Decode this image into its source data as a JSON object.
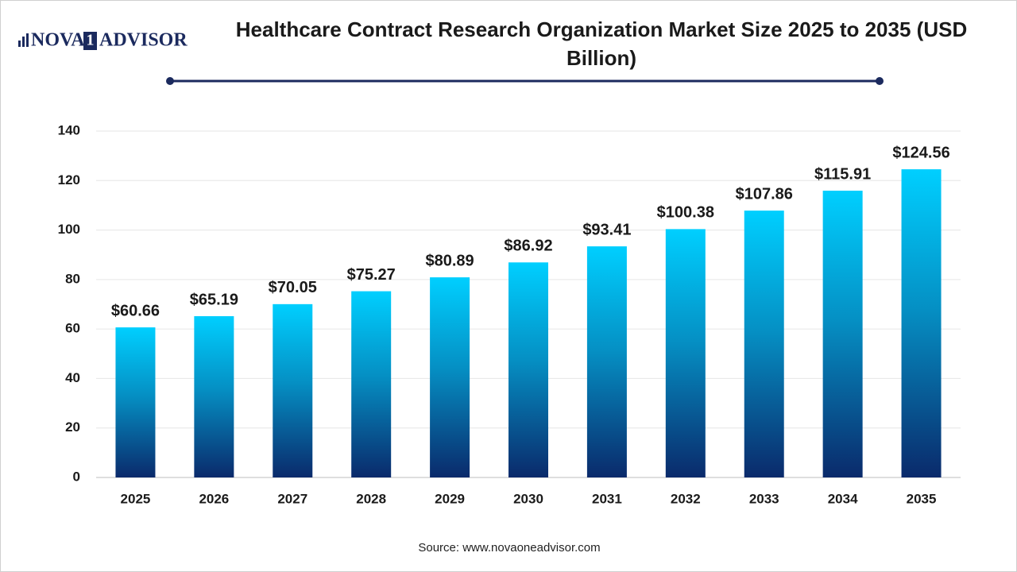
{
  "logo": {
    "left": "NOVA",
    "mark": "1",
    "right": "ADVISOR"
  },
  "chart_data": {
    "type": "bar",
    "title": "Healthcare Contract Research Organization Market Size 2025 to 2035 (USD Billion)",
    "source": "Source: www.novaoneadvisor.com",
    "categories": [
      "2025",
      "2026",
      "2027",
      "2028",
      "2029",
      "2030",
      "2031",
      "2032",
      "2033",
      "2034",
      "2035"
    ],
    "values": [
      60.66,
      65.19,
      70.05,
      75.27,
      80.89,
      86.92,
      93.41,
      100.38,
      107.86,
      115.91,
      124.56
    ],
    "value_labels": [
      "$60.66",
      "$65.19",
      "$70.05",
      "$75.27",
      "$80.89",
      "$86.92",
      "$93.41",
      "$100.38",
      "$107.86",
      "$115.91",
      "$124.56"
    ],
    "color": "#00cfff",
    "ylim": [
      0,
      140
    ],
    "yticks": [
      0,
      20,
      40,
      60,
      80,
      100,
      120,
      140
    ],
    "grid": true
  }
}
